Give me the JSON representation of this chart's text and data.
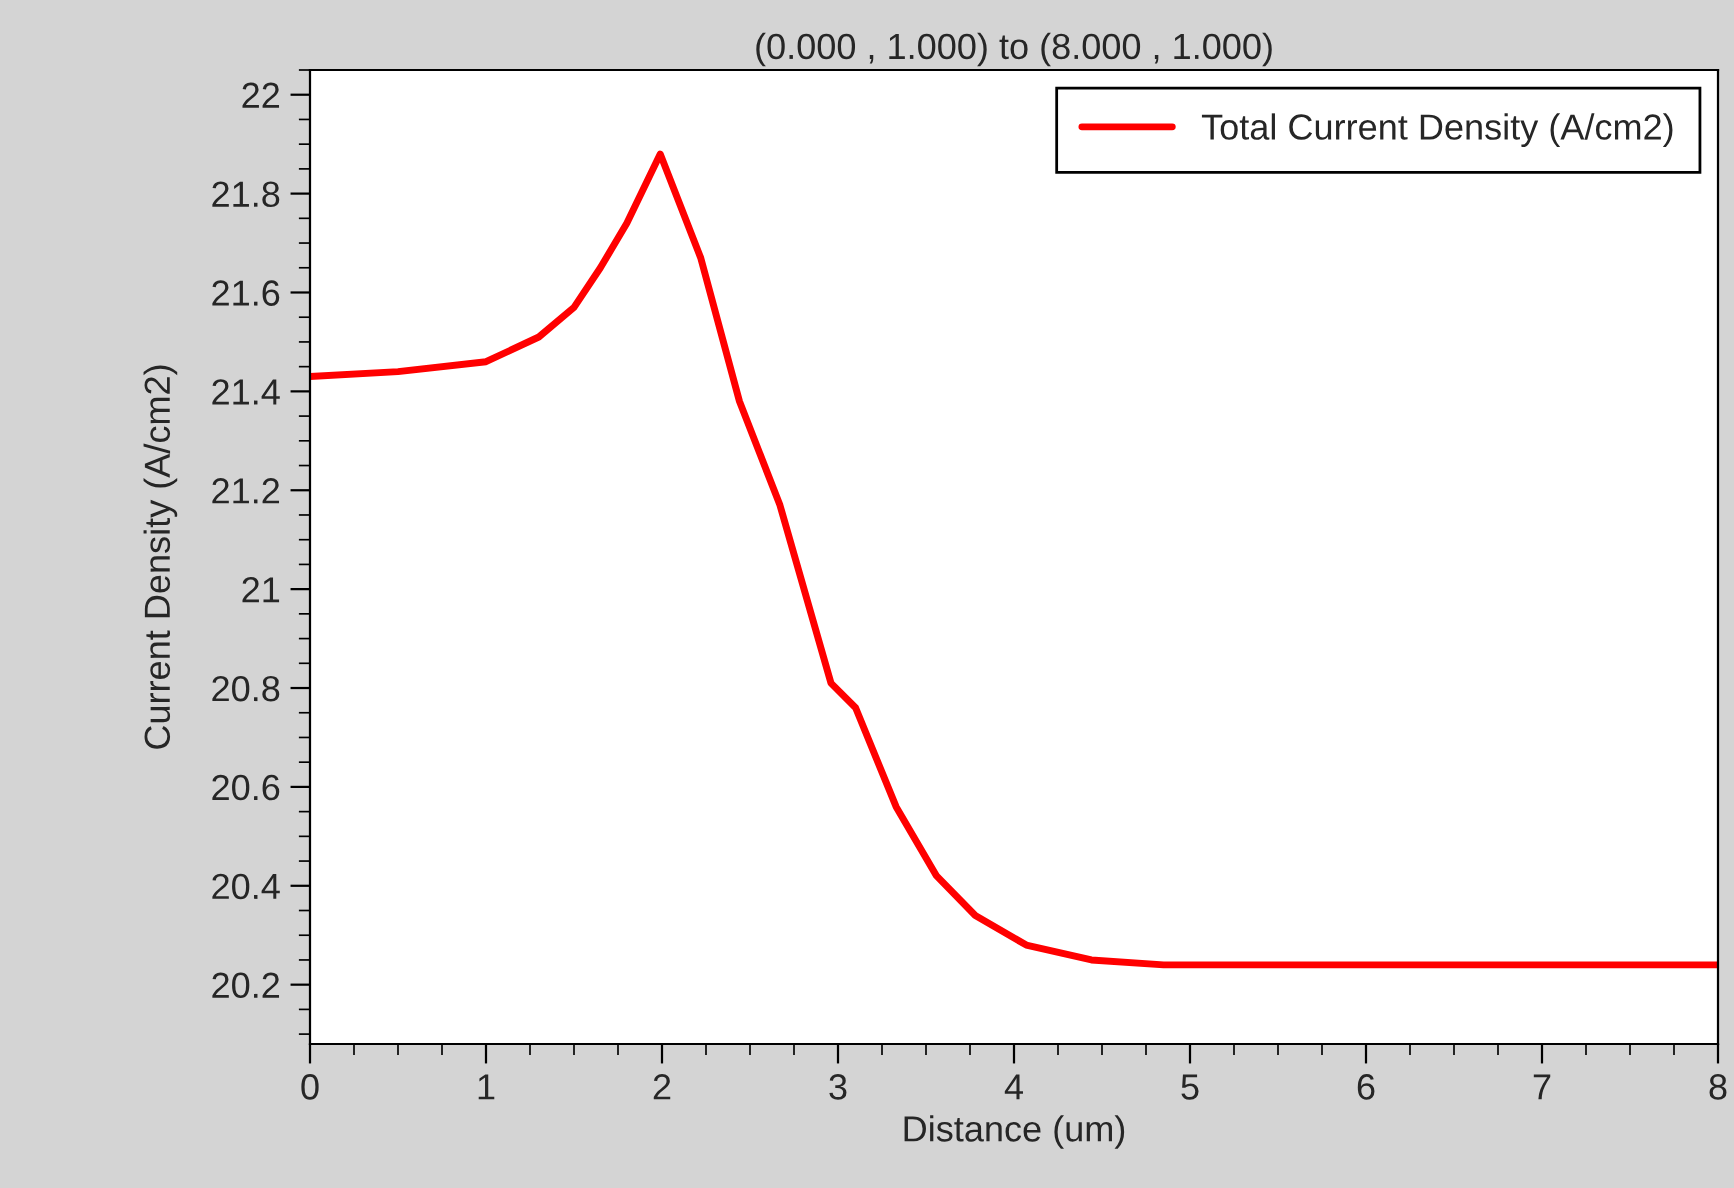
{
  "chart_data": {
    "type": "line",
    "title": "(0.000 , 1.000) to (8.000 , 1.000)",
    "xlabel": "Distance (um)",
    "ylabel": "Current Density (A/cm2)",
    "series": [
      {
        "name": "Total Current Density (A/cm2)",
        "color": "#ff0000",
        "x": [
          0,
          0.5,
          1,
          1.3,
          1.5,
          1.65,
          1.8,
          1.99,
          2.22,
          2.44,
          2.67,
          2.96,
          3.1,
          3.33,
          3.56,
          3.78,
          4.07,
          4.44,
          4.85,
          6,
          7,
          8
        ],
        "values": [
          21.43,
          21.44,
          21.46,
          21.51,
          21.57,
          21.65,
          21.74,
          21.88,
          21.67,
          21.38,
          21.17,
          20.81,
          20.76,
          20.56,
          20.42,
          20.34,
          20.28,
          20.25,
          20.24,
          20.24,
          20.24,
          20.24
        ]
      }
    ],
    "xlim": [
      0,
      8
    ],
    "xticks": [
      0,
      1,
      2,
      3,
      4,
      5,
      6,
      7,
      8
    ],
    "ylim": [
      20.08,
      22.05
    ],
    "yticks": [
      20.2,
      20.4,
      20.6,
      20.8,
      21,
      21.2,
      21.4,
      21.6,
      21.8,
      22
    ],
    "grid": false,
    "legend": "top right",
    "marker": "none",
    "line_style": "solid"
  }
}
